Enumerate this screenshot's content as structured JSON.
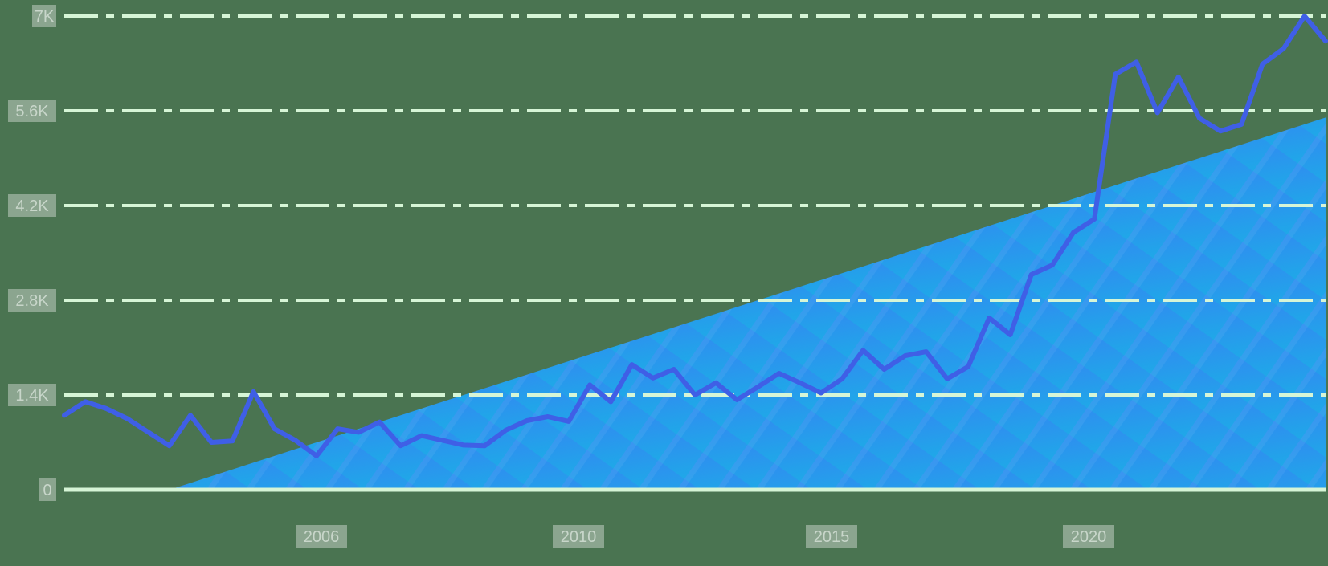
{
  "colors": {
    "background": "#4a7451",
    "gridline": "#d6f5d6",
    "line": "#3f5fe6",
    "area_top": "#2f8ef0",
    "area_bottom": "#1fa8e8",
    "label_bg": "#8ba58f",
    "label_text": "#c8d6ca"
  },
  "chart_data": {
    "type": "line",
    "title": "",
    "xlabel": "",
    "ylabel": "",
    "x_tick_labels": [
      "2006",
      "2010",
      "2015",
      "2020"
    ],
    "y_tick_labels": [
      "0",
      "1.4K",
      "2.8K",
      "4.2K",
      "5.6K",
      "7K"
    ],
    "ylim": [
      0,
      7000
    ],
    "grid": true,
    "legend": "none",
    "series": [
      {
        "kind": "line",
        "values": [
          1100,
          1300,
          1200,
          1050,
          850,
          650,
          1100,
          700,
          720,
          1450,
          900,
          730,
          500,
          900,
          850,
          1000,
          650,
          800,
          730,
          660,
          650,
          880,
          1020,
          1080,
          1010,
          1550,
          1300,
          1850,
          1650,
          1780,
          1400,
          1580,
          1330,
          1520,
          1720,
          1580,
          1430,
          1640,
          2060,
          1780,
          1980,
          2040,
          1640,
          1820,
          2540,
          2290,
          3180,
          3320,
          3800,
          4000,
          6140,
          6320,
          5570,
          6100,
          5490,
          5300,
          5400,
          6290,
          6520,
          7000,
          6630
        ]
      },
      {
        "kind": "area",
        "values": [
          0,
          0,
          0,
          0,
          0,
          0,
          100,
          200,
          300,
          400,
          500,
          600,
          700,
          800,
          900,
          1000,
          1100,
          1200,
          1300,
          1400,
          1500,
          1600,
          1700,
          1800,
          1900,
          2000,
          2100,
          2200,
          2300,
          2400,
          2500,
          2600,
          2700,
          2800,
          2900,
          3000,
          3100,
          3200,
          3300,
          3400,
          3500,
          3600,
          3700,
          3800,
          3900,
          4000,
          4100,
          4200,
          4300,
          4400,
          4500,
          4600,
          4700,
          4800,
          4900,
          5000,
          5100,
          5200,
          5300,
          5400,
          5500
        ]
      }
    ]
  }
}
